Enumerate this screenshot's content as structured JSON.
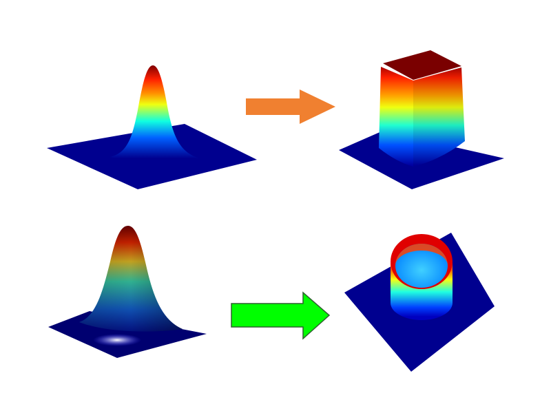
{
  "colors": {
    "plane": "#00008f",
    "arrow_top": "#f08030",
    "arrow_bottom": "#00ff00",
    "arrow_bottom_stroke": "#2f5f2f"
  },
  "panels": [
    {
      "id": "gaussian-top",
      "shape": "gaussian peak"
    },
    {
      "id": "flat-top",
      "shape": "flat-top square"
    },
    {
      "id": "gaussian-bottom",
      "shape": "gaussian peak (shaded)"
    },
    {
      "id": "ring",
      "shape": "ring / cylinder"
    }
  ],
  "arrows": [
    {
      "id": "arrow-top",
      "icon": "arrow-right-icon"
    },
    {
      "id": "arrow-bottom",
      "icon": "arrow-right-icon"
    }
  ]
}
